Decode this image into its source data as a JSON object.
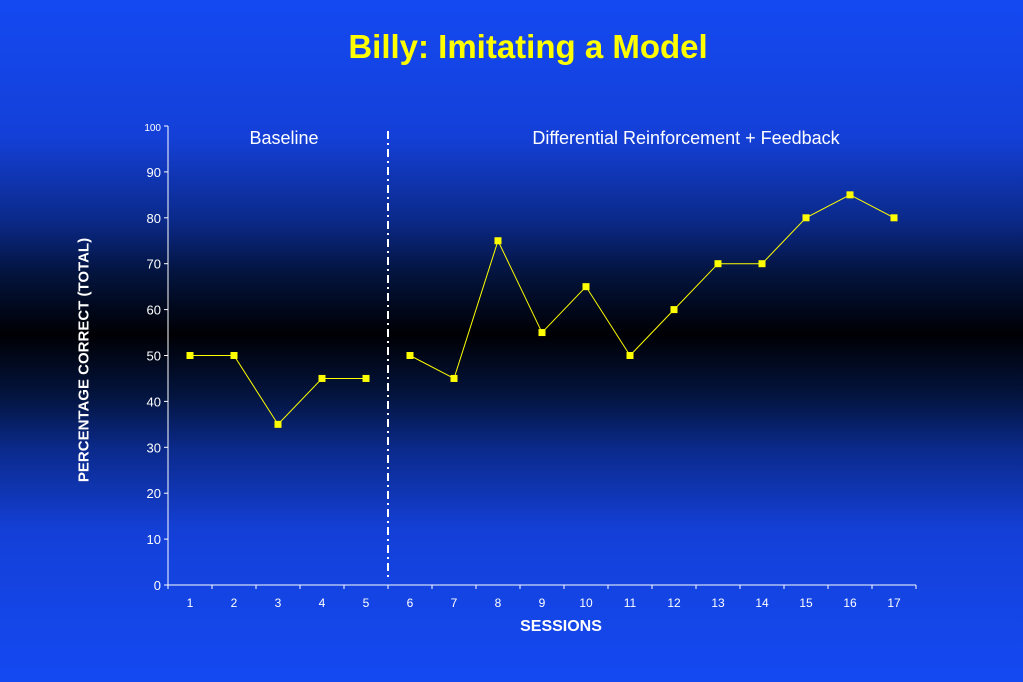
{
  "chart_data": {
    "type": "line",
    "title": "Billy: Imitating a Model",
    "xlabel": "SESSIONS",
    "ylabel": "PERCENTAGE CORRECT (TOTAL)",
    "ylim": [
      0,
      100
    ],
    "yticks": [
      0,
      10,
      20,
      30,
      40,
      50,
      60,
      70,
      80,
      90,
      100
    ],
    "x": [
      1,
      2,
      3,
      4,
      5,
      6,
      7,
      8,
      9,
      10,
      11,
      12,
      13,
      14,
      15,
      16,
      17
    ],
    "phases": [
      {
        "label": "Baseline",
        "sessions": [
          1,
          5
        ],
        "values": [
          50,
          50,
          35,
          45,
          45
        ]
      },
      {
        "label": "Differential Reinforcement + Feedback",
        "sessions": [
          6,
          17
        ],
        "values": [
          50,
          45,
          75,
          55,
          65,
          50,
          60,
          70,
          70,
          80,
          85,
          80
        ]
      }
    ],
    "phase_change_after_session": 5,
    "grid": false,
    "colors": {
      "marker": "#ffff00",
      "line": "#ffff00",
      "axis": "#ffffff",
      "title": "#ffff00"
    }
  }
}
